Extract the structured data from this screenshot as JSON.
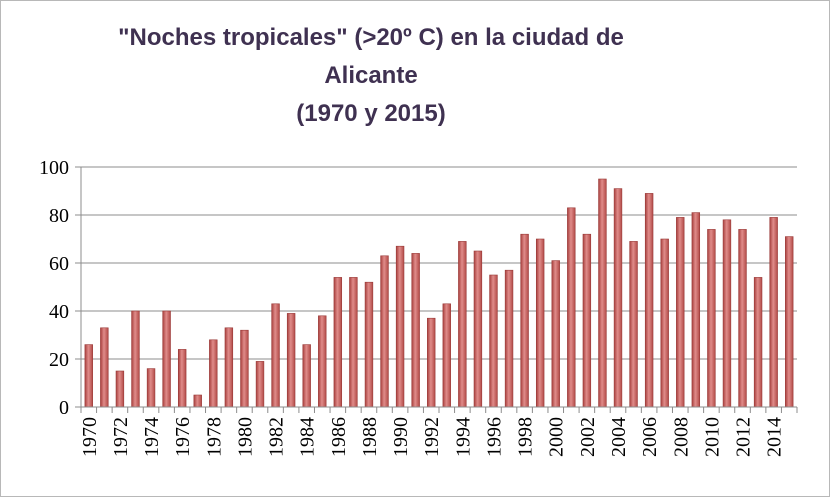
{
  "chart_data": {
    "type": "bar",
    "title": "\"Noches tropicales\" (>20º C) en la ciudad de\nAlicante\n(1970 y 2015)",
    "xlabel": "",
    "ylabel": "",
    "ylim": [
      0,
      100
    ],
    "yticks": [
      0,
      20,
      40,
      60,
      80,
      100
    ],
    "grid": true,
    "bar_color": "#c0504d",
    "categories": [
      "1970",
      "1971",
      "1972",
      "1973",
      "1974",
      "1975",
      "1976",
      "1977",
      "1978",
      "1979",
      "1980",
      "1981",
      "1982",
      "1983",
      "1984",
      "1985",
      "1986",
      "1987",
      "1988",
      "1989",
      "1990",
      "1991",
      "1992",
      "1993",
      "1994",
      "1995",
      "1996",
      "1997",
      "1998",
      "1999",
      "2000",
      "2001",
      "2002",
      "2003",
      "2004",
      "2005",
      "2006",
      "2007",
      "2008",
      "2009",
      "2010",
      "2011",
      "2012",
      "2013",
      "2014",
      "2015"
    ],
    "x_tick_labels": [
      "1970",
      "1972",
      "1974",
      "1976",
      "1978",
      "1980",
      "1982",
      "1984",
      "1986",
      "1988",
      "1990",
      "1992",
      "1994",
      "1996",
      "1998",
      "2000",
      "2002",
      "2004",
      "2006",
      "2008",
      "2010",
      "2012",
      "2014"
    ],
    "values": [
      26,
      33,
      15,
      40,
      16,
      40,
      24,
      5,
      28,
      33,
      32,
      19,
      43,
      39,
      26,
      38,
      54,
      54,
      52,
      63,
      67,
      64,
      37,
      43,
      69,
      65,
      55,
      57,
      72,
      70,
      61,
      83,
      72,
      95,
      91,
      69,
      89,
      70,
      79,
      81,
      74,
      78,
      74,
      54,
      79,
      71
    ]
  }
}
